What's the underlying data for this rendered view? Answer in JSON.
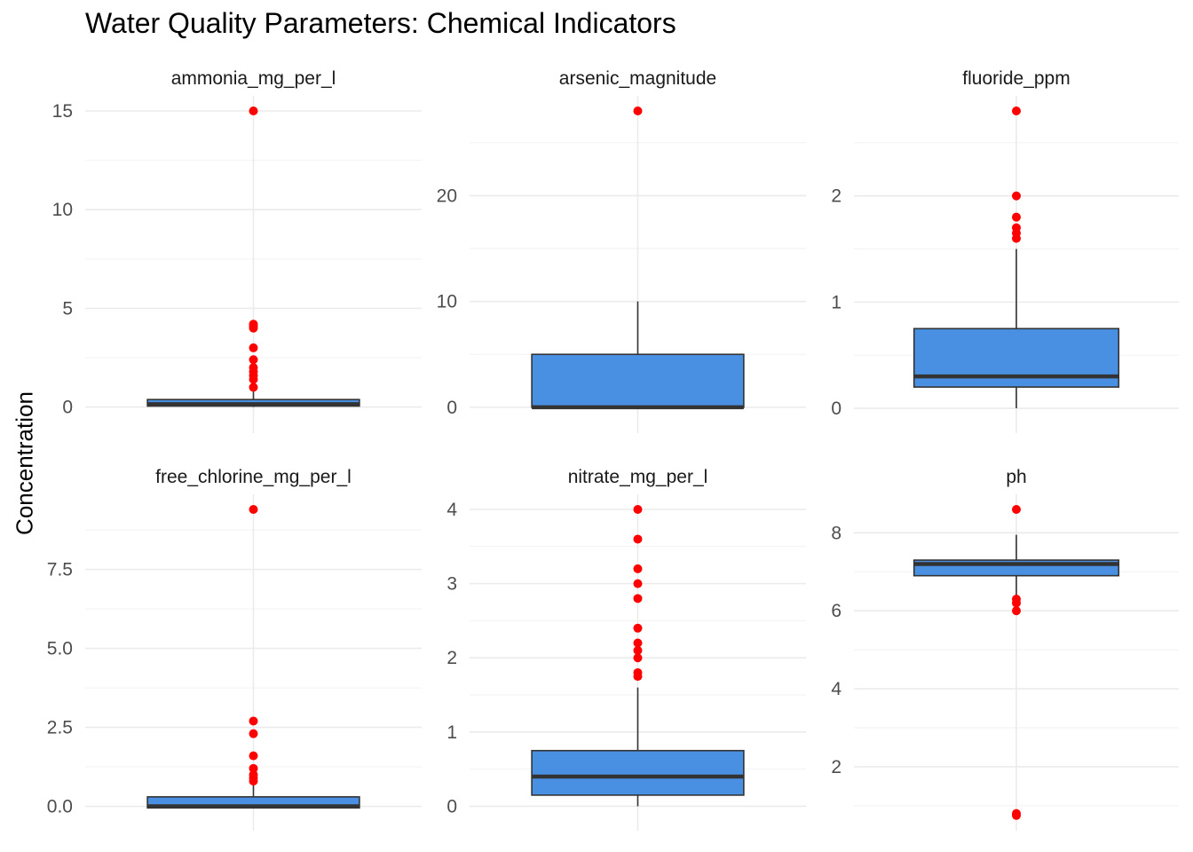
{
  "chart_data": {
    "type": "boxplot",
    "title": "Water Quality Parameters: Chemical Indicators",
    "ylabel": "Concentration",
    "xlabel": "",
    "colors": {
      "box_fill": "#4A90E2",
      "box_stroke": "#333333",
      "outlier": "#FF0000",
      "grid": "#EBEBEB",
      "axis_text": "#4D4D4D"
    },
    "facets": [
      {
        "name": "ammonia_mg_per_l",
        "ylim": [
          -0.6,
          15
        ],
        "yticks": [
          0,
          5,
          10,
          15
        ],
        "yticks_labels": [
          "0",
          "5",
          "10",
          "15"
        ],
        "box": {
          "q1": 0.05,
          "median": 0.15,
          "q3": 0.38,
          "lower_whisker": 0,
          "upper_whisker": 0.85
        },
        "outliers": [
          15,
          4.2,
          4.1,
          4.0,
          3.0,
          2.4,
          2.0,
          1.8,
          1.6,
          1.4,
          1.0
        ]
      },
      {
        "name": "arsenic_magnitude",
        "ylim": [
          -1.1,
          28
        ],
        "yticks": [
          0,
          10,
          20
        ],
        "yticks_labels": [
          "0",
          "10",
          "20"
        ],
        "box": {
          "q1": 0,
          "median": 0,
          "q3": 5,
          "lower_whisker": 0,
          "upper_whisker": 10
        },
        "outliers": [
          28
        ]
      },
      {
        "name": "fluoride_ppm",
        "ylim": [
          -0.1,
          2.8
        ],
        "yticks": [
          0,
          1,
          2
        ],
        "yticks_labels": [
          "0",
          "1",
          "2"
        ],
        "box": {
          "q1": 0.2,
          "median": 0.3,
          "q3": 0.75,
          "lower_whisker": 0,
          "upper_whisker": 1.5
        },
        "outliers": [
          2.8,
          2.0,
          1.8,
          1.7,
          1.65,
          1.6
        ]
      },
      {
        "name": "free_chlorine_mg_per_l",
        "ylim": [
          -0.35,
          9.4
        ],
        "yticks": [
          0,
          2.5,
          5,
          7.5
        ],
        "yticks_labels": [
          "0.0",
          "2.5",
          "5.0",
          "7.5"
        ],
        "box": {
          "q1": -0.05,
          "median": 0.0,
          "q3": 0.3,
          "lower_whisker": -0.05,
          "upper_whisker": 0.75
        },
        "outliers": [
          9.4,
          2.7,
          2.3,
          1.6,
          1.2,
          1.0,
          0.9,
          0.8
        ]
      },
      {
        "name": "nitrate_mg_per_l",
        "ylim": [
          -0.15,
          4
        ],
        "yticks": [
          0,
          1,
          2,
          3,
          4
        ],
        "yticks_labels": [
          "0",
          "1",
          "2",
          "3",
          "4"
        ],
        "box": {
          "q1": 0.15,
          "median": 0.4,
          "q3": 0.75,
          "lower_whisker": 0,
          "upper_whisker": 1.6
        },
        "outliers": [
          4.0,
          3.6,
          3.2,
          3.0,
          2.8,
          2.4,
          2.2,
          2.1,
          2.0,
          1.8,
          1.75
        ]
      },
      {
        "name": "ph",
        "ylim": [
          0.7,
          8.6
        ],
        "yticks": [
          2,
          4,
          6,
          8
        ],
        "yticks_labels": [
          "2",
          "4",
          "6",
          "8"
        ],
        "box": {
          "q1": 6.9,
          "median": 7.2,
          "q3": 7.3,
          "lower_whisker": 6.4,
          "upper_whisker": 7.95
        },
        "outliers": [
          8.6,
          6.3,
          6.2,
          6.0,
          0.8,
          0.75
        ]
      }
    ]
  }
}
